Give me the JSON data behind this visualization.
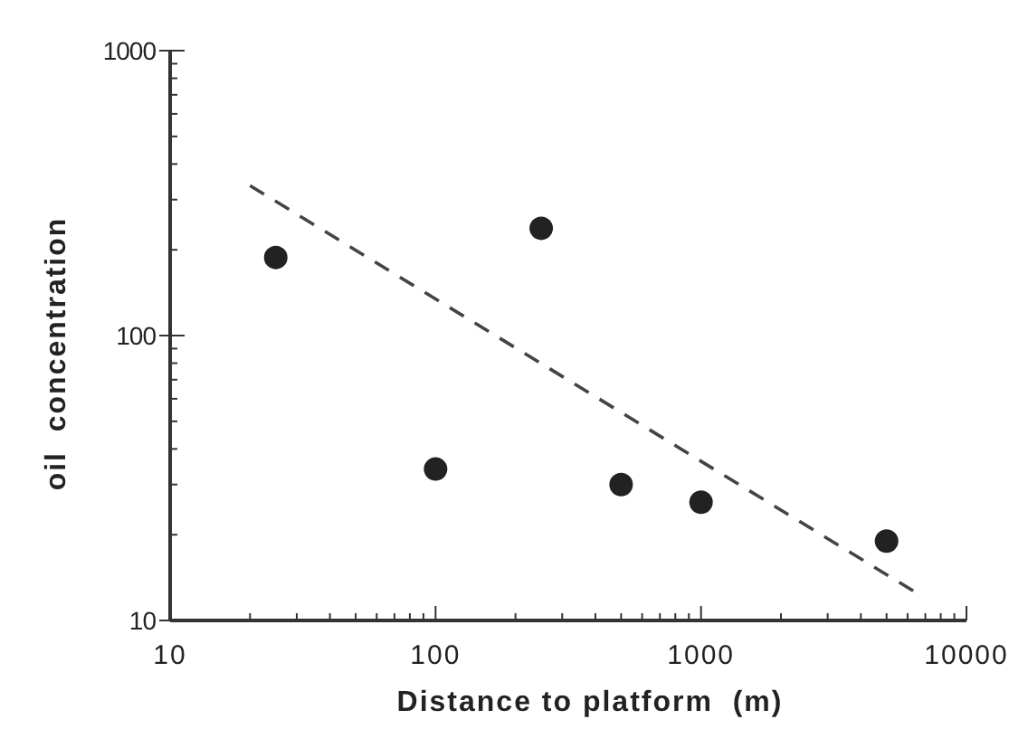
{
  "chart_data": {
    "type": "scatter",
    "xlabel": "Distance to platform  (m)",
    "ylabel": "oil  concentration",
    "log": "xy",
    "xlim": [
      10,
      10000
    ],
    "ylim": [
      10,
      1000
    ],
    "xticks": [
      10,
      100,
      1000,
      10000
    ],
    "yticks": [
      10,
      100,
      1000
    ],
    "grid": false,
    "series": [
      {
        "color": "#222222",
        "marker": "circle",
        "x": [
          25,
          100,
          250,
          500,
          1000,
          5000
        ],
        "values": [
          188,
          34,
          238,
          30,
          26,
          19
        ]
      },
      {
        "type": "line",
        "color": "#444444",
        "line_style": "dashed",
        "marker": "none",
        "x": [
          20,
          6300
        ],
        "values": [
          336,
          12.7
        ]
      }
    ]
  }
}
